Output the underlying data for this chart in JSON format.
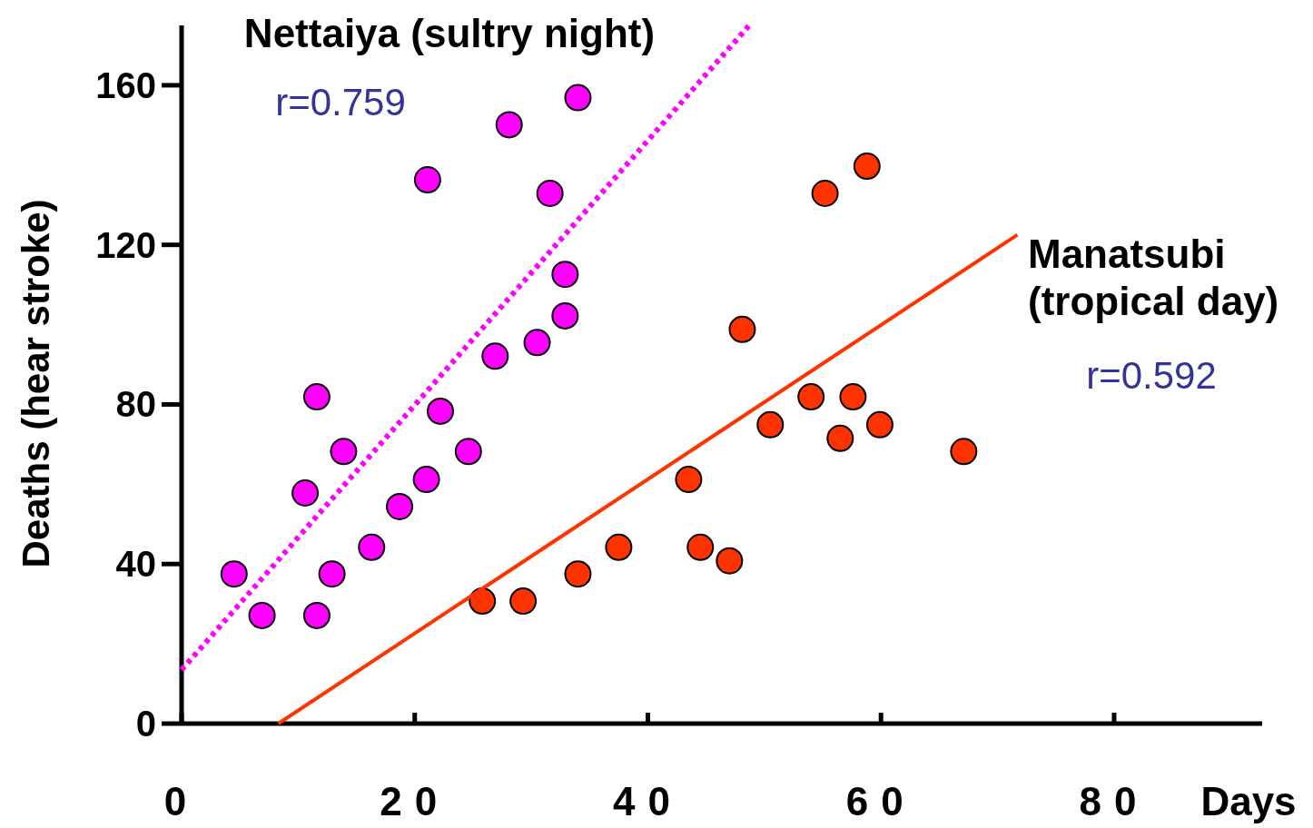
{
  "chart_data": {
    "type": "scatter",
    "xlabel": "Days",
    "ylabel": "Deaths (hear stroke)",
    "xlim": [
      0,
      92.7
    ],
    "ylim": [
      0,
      175
    ],
    "xticks": [
      0,
      20,
      40,
      60,
      80
    ],
    "yticks": [
      0,
      40,
      80,
      120,
      160
    ],
    "grid": false,
    "series": [
      {
        "name": "Nettaiya (sultry night)",
        "color": "#ff00ff",
        "marker": "circle",
        "x": [
          4.5,
          6.9,
          11.6,
          11.6,
          10.6,
          12.9,
          13.9,
          16.3,
          18.7,
          21.0,
          21.1,
          22.2,
          24.6,
          26.9,
          28.1,
          30.5,
          31.6,
          32.9,
          32.9,
          34.0
        ],
        "values": [
          37.5,
          27.1,
          27.1,
          81.9,
          57.8,
          37.5,
          68.2,
          44.2,
          54.4,
          61.2,
          136.3,
          78.3,
          68.2,
          92.1,
          150.1,
          95.5,
          132.9,
          102.2,
          112.6,
          156.9
        ]
      },
      {
        "color": "#ff3300",
        "marker": "circle",
        "x": [
          25.8,
          29.3,
          34.0,
          37.5,
          43.5,
          44.5,
          47.0,
          48.1,
          50.5,
          54.0,
          55.2,
          56.5,
          57.6,
          58.8,
          59.9,
          67.1
        ],
        "values": [
          30.7,
          30.7,
          37.5,
          44.2,
          61.2,
          44.2,
          40.8,
          98.8,
          74.9,
          81.9,
          132.9,
          71.5,
          81.9,
          139.7,
          74.9,
          68.2
        ]
      },
      {
        "type": "line",
        "color": "#ff00ff",
        "line_style": "dotted",
        "x": [
          0,
          48.7
        ],
        "values": [
          13.5,
          175
        ]
      },
      {
        "type": "line",
        "name": "Manatsubi (tropical day)",
        "color": "#ff3300",
        "line_style": "solid",
        "x": [
          8.3,
          71.7
        ],
        "values": [
          0,
          122.5
        ]
      }
    ],
    "annotations": [
      "r=0.759",
      "r=0.592"
    ]
  }
}
